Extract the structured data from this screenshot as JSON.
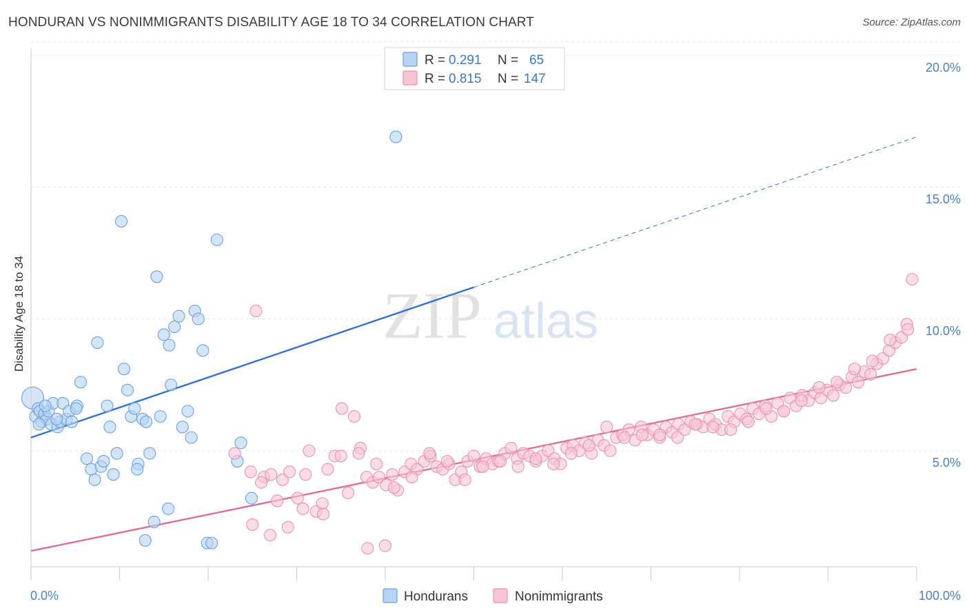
{
  "header": {
    "title": "HONDURAN VS NONIMMIGRANTS DISABILITY AGE 18 TO 34 CORRELATION CHART",
    "source": "Source: ZipAtlas.com"
  },
  "watermark": {
    "zip": "ZIP",
    "atlas": "atlas"
  },
  "colors": {
    "blue_fill": "#b8d3f3",
    "blue_stroke": "#6b9fe0",
    "blue_line": "#2f72d0",
    "pink_fill": "#f7c6d6",
    "pink_stroke": "#ec8fb0",
    "pink_line": "#e06b98",
    "tick_text": "#4a7fc9"
  },
  "legend": {
    "rows": [
      {
        "r_label": "R = ",
        "r_value": "0.291",
        "n_label": "N = ",
        "n_value": "65"
      },
      {
        "r_label": "R = ",
        "r_value": "0.815",
        "n_label": "N = ",
        "n_value": "147"
      }
    ]
  },
  "bottom_legend": [
    "Hondurans",
    "Nonimmigrants"
  ],
  "chart_data": {
    "type": "scatter",
    "title": "HONDURAN VS NONIMMIGRANTS DISABILITY AGE 18 TO 34 CORRELATION CHART",
    "ylabel": "Disability Age 18 to 34",
    "xlabel": "",
    "xlim": [
      0,
      100
    ],
    "ylim": [
      0,
      20.5
    ],
    "x_tick_labels": [
      "0.0%",
      "100.0%"
    ],
    "y_ticks": [
      5,
      10,
      15,
      20
    ],
    "y_tick_labels": [
      "5.0%",
      "10.0%",
      "15.0%",
      "20.0%"
    ],
    "grid": true,
    "legend_position": "top-center",
    "series": [
      {
        "name": "Hondurans",
        "r": 0.291,
        "n": 65,
        "trend": {
          "x0": 0,
          "y0": 5.5,
          "x1": 50,
          "y1": 11.2,
          "dashed_to_x": 100,
          "dashed_to_y": 16.9
        },
        "points": [
          [
            0.2,
            7.0
          ],
          [
            0.5,
            6.3
          ],
          [
            0.8,
            6.6
          ],
          [
            1.0,
            6.5
          ],
          [
            1.2,
            6.1
          ],
          [
            1.5,
            6.4
          ],
          [
            1.8,
            6.2
          ],
          [
            2.0,
            6.5
          ],
          [
            2.3,
            6.0
          ],
          [
            2.5,
            6.8
          ],
          [
            3.0,
            5.9
          ],
          [
            3.3,
            6.1
          ],
          [
            3.6,
            6.8
          ],
          [
            4.0,
            6.2
          ],
          [
            4.3,
            6.5
          ],
          [
            4.6,
            6.1
          ],
          [
            5.2,
            6.7
          ],
          [
            5.6,
            7.6
          ],
          [
            6.3,
            4.7
          ],
          [
            6.8,
            4.3
          ],
          [
            7.2,
            3.9
          ],
          [
            7.5,
            9.1
          ],
          [
            7.9,
            4.4
          ],
          [
            8.2,
            4.6
          ],
          [
            8.6,
            6.7
          ],
          [
            8.9,
            5.9
          ],
          [
            9.3,
            4.1
          ],
          [
            9.7,
            4.9
          ],
          [
            10.2,
            13.7
          ],
          [
            10.5,
            8.1
          ],
          [
            10.9,
            7.3
          ],
          [
            11.3,
            6.3
          ],
          [
            11.7,
            6.6
          ],
          [
            12.1,
            4.5
          ],
          [
            12.6,
            6.2
          ],
          [
            13.0,
            6.1
          ],
          [
            13.4,
            4.9
          ],
          [
            13.9,
            2.3
          ],
          [
            14.2,
            11.6
          ],
          [
            14.6,
            6.3
          ],
          [
            15.0,
            9.4
          ],
          [
            15.5,
            2.8
          ],
          [
            15.8,
            7.5
          ],
          [
            16.2,
            9.7
          ],
          [
            16.7,
            10.1
          ],
          [
            17.1,
            5.9
          ],
          [
            17.7,
            6.5
          ],
          [
            18.1,
            5.5
          ],
          [
            18.5,
            10.3
          ],
          [
            18.9,
            10.0
          ],
          [
            19.4,
            8.8
          ],
          [
            19.9,
            1.5
          ],
          [
            20.4,
            1.5
          ],
          [
            21.0,
            13.0
          ],
          [
            15.6,
            9.0
          ],
          [
            12.9,
            1.6
          ],
          [
            12.0,
            4.3
          ],
          [
            5.1,
            6.6
          ],
          [
            2.9,
            6.2
          ],
          [
            0.9,
            6.0
          ],
          [
            1.6,
            6.7
          ],
          [
            23.7,
            5.3
          ],
          [
            23.3,
            4.6
          ],
          [
            41.2,
            16.9
          ],
          [
            24.9,
            3.2
          ]
        ]
      },
      {
        "name": "Nonimmigrants",
        "r": 0.815,
        "n": 147,
        "trend": {
          "x0": 0,
          "y0": 1.2,
          "x1": 100,
          "y1": 8.1
        },
        "points": [
          [
            24.8,
            4.2
          ],
          [
            25.4,
            10.3
          ],
          [
            26.3,
            4.0
          ],
          [
            27.1,
            4.1
          ],
          [
            27.8,
            3.1
          ],
          [
            28.4,
            3.9
          ],
          [
            29.2,
            4.2
          ],
          [
            30.1,
            3.2
          ],
          [
            30.7,
            2.8
          ],
          [
            31.4,
            5.0
          ],
          [
            32.2,
            2.7
          ],
          [
            32.9,
            3.0
          ],
          [
            33.5,
            4.3
          ],
          [
            34.3,
            4.8
          ],
          [
            35.1,
            6.6
          ],
          [
            35.8,
            3.4
          ],
          [
            36.5,
            6.3
          ],
          [
            37.2,
            5.1
          ],
          [
            37.9,
            4.0
          ],
          [
            38.6,
            3.8
          ],
          [
            39.3,
            4.0
          ],
          [
            40.1,
            3.7
          ],
          [
            40.8,
            4.1
          ],
          [
            41.4,
            3.5
          ],
          [
            42.2,
            4.2
          ],
          [
            42.9,
            4.5
          ],
          [
            43.6,
            4.3
          ],
          [
            44.4,
            4.6
          ],
          [
            45.1,
            4.8
          ],
          [
            45.8,
            4.4
          ],
          [
            46.5,
            4.3
          ],
          [
            47.2,
            4.5
          ],
          [
            47.9,
            3.9
          ],
          [
            48.6,
            4.2
          ],
          [
            49.3,
            4.6
          ],
          [
            50.0,
            4.8
          ],
          [
            50.7,
            4.4
          ],
          [
            51.4,
            4.7
          ],
          [
            52.1,
            4.5
          ],
          [
            52.8,
            4.6
          ],
          [
            53.5,
            4.9
          ],
          [
            54.2,
            5.1
          ],
          [
            54.9,
            4.7
          ],
          [
            55.6,
            4.9
          ],
          [
            56.3,
            4.8
          ],
          [
            57.0,
            4.6
          ],
          [
            57.7,
            4.8
          ],
          [
            58.4,
            5.0
          ],
          [
            59.1,
            4.7
          ],
          [
            59.8,
            4.5
          ],
          [
            60.5,
            5.1
          ],
          [
            61.2,
            5.2
          ],
          [
            61.9,
            5.0
          ],
          [
            62.6,
            5.3
          ],
          [
            63.3,
            4.9
          ],
          [
            64.0,
            5.4
          ],
          [
            64.7,
            5.2
          ],
          [
            65.4,
            5.0
          ],
          [
            66.1,
            5.5
          ],
          [
            66.8,
            5.6
          ],
          [
            67.5,
            5.8
          ],
          [
            68.2,
            5.4
          ],
          [
            68.9,
            5.9
          ],
          [
            69.6,
            5.6
          ],
          [
            70.3,
            5.8
          ],
          [
            71.0,
            5.5
          ],
          [
            71.7,
            5.9
          ],
          [
            72.4,
            5.7
          ],
          [
            73.1,
            6.0
          ],
          [
            73.8,
            5.8
          ],
          [
            74.5,
            6.1
          ],
          [
            75.2,
            6.0
          ],
          [
            75.9,
            5.9
          ],
          [
            76.6,
            6.2
          ],
          [
            77.3,
            6.0
          ],
          [
            78.0,
            5.8
          ],
          [
            78.7,
            6.3
          ],
          [
            79.4,
            6.1
          ],
          [
            80.1,
            6.4
          ],
          [
            80.8,
            6.2
          ],
          [
            81.5,
            6.6
          ],
          [
            82.2,
            6.4
          ],
          [
            82.9,
            6.7
          ],
          [
            83.6,
            6.3
          ],
          [
            84.3,
            6.8
          ],
          [
            85.0,
            6.5
          ],
          [
            85.7,
            7.0
          ],
          [
            86.4,
            6.7
          ],
          [
            87.1,
            7.1
          ],
          [
            87.8,
            6.9
          ],
          [
            88.5,
            7.2
          ],
          [
            89.2,
            7.0
          ],
          [
            89.9,
            7.3
          ],
          [
            90.6,
            7.1
          ],
          [
            91.3,
            7.5
          ],
          [
            92.0,
            7.4
          ],
          [
            92.7,
            7.8
          ],
          [
            93.4,
            7.6
          ],
          [
            94.1,
            8.0
          ],
          [
            94.8,
            7.9
          ],
          [
            95.5,
            8.3
          ],
          [
            96.2,
            8.5
          ],
          [
            96.9,
            8.8
          ],
          [
            97.6,
            9.1
          ],
          [
            98.3,
            9.3
          ],
          [
            98.9,
            9.8
          ],
          [
            99.5,
            11.5
          ],
          [
            99.0,
            9.6
          ],
          [
            97.0,
            9.2
          ],
          [
            95.0,
            8.4
          ],
          [
            93.0,
            8.1
          ],
          [
            91.0,
            7.6
          ],
          [
            89.0,
            7.4
          ],
          [
            87.0,
            6.9
          ],
          [
            85.0,
            6.5
          ],
          [
            83.0,
            6.6
          ],
          [
            81.0,
            6.1
          ],
          [
            79.0,
            5.8
          ],
          [
            77.0,
            5.9
          ],
          [
            75.0,
            6.0
          ],
          [
            73.0,
            5.5
          ],
          [
            71.0,
            5.6
          ],
          [
            69.0,
            5.6
          ],
          [
            67.0,
            5.5
          ],
          [
            65.0,
            5.9
          ],
          [
            63.0,
            5.2
          ],
          [
            61.0,
            4.9
          ],
          [
            59.0,
            4.5
          ],
          [
            57.0,
            4.7
          ],
          [
            55.0,
            4.4
          ],
          [
            53.0,
            4.6
          ],
          [
            51.0,
            4.4
          ],
          [
            49.0,
            3.9
          ],
          [
            47.0,
            4.6
          ],
          [
            45.0,
            4.9
          ],
          [
            43.0,
            4.0
          ],
          [
            41.0,
            3.6
          ],
          [
            39.0,
            4.5
          ],
          [
            37.0,
            4.9
          ],
          [
            35.0,
            4.8
          ],
          [
            33.0,
            2.6
          ],
          [
            31.0,
            4.1
          ],
          [
            29.0,
            2.1
          ],
          [
            27.0,
            1.8
          ],
          [
            25.0,
            2.2
          ],
          [
            23.0,
            4.9
          ],
          [
            40.0,
            1.4
          ],
          [
            38.0,
            1.3
          ],
          [
            26.0,
            3.8
          ]
        ]
      }
    ]
  }
}
